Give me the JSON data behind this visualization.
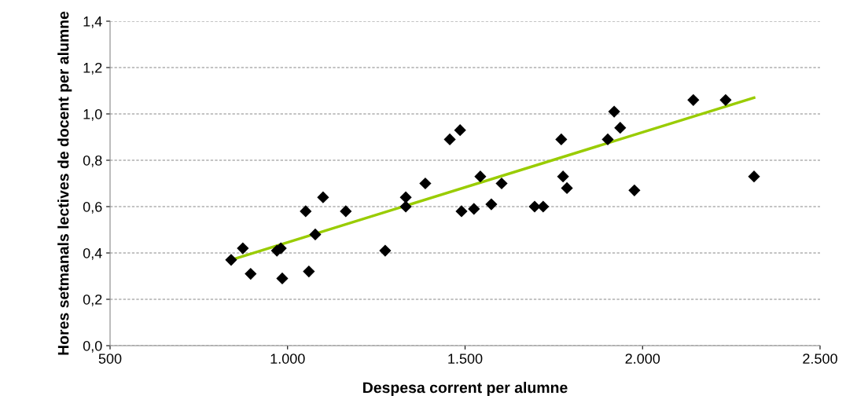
{
  "chart_data": {
    "type": "scatter",
    "xlabel": "Despesa corrent per alumne",
    "ylabel": "Hores setmanals lectives de docent per alumne",
    "grid": "y",
    "xlim": [
      500,
      2500
    ],
    "ylim": [
      0,
      1.4
    ],
    "xticks": [
      500,
      {
        "value": 1000,
        "label": "1.000"
      },
      {
        "value": 1500,
        "label": "1.500"
      },
      {
        "value": 2000,
        "label": "2.000"
      },
      {
        "value": 2500,
        "label": "2.500"
      }
    ],
    "yticks": [
      {
        "value": 0,
        "label": "0,0"
      },
      {
        "value": 0.2,
        "label": "0,2"
      },
      {
        "value": 0.4,
        "label": "0,4"
      },
      {
        "value": 0.6,
        "label": "0,6"
      },
      {
        "value": 0.8,
        "label": "0,8"
      },
      {
        "value": 1.0,
        "label": "1,0"
      },
      {
        "value": 1.2,
        "label": "1,2"
      },
      {
        "value": 1.4,
        "label": "1,4"
      }
    ],
    "series": [
      {
        "marker": "diamond",
        "color": "#000000",
        "x": [
          841,
          874,
          896,
          970,
          981,
          985,
          1051,
          1060,
          1078,
          1100,
          1164,
          1275,
          1333,
          1333,
          1388,
          1457,
          1486,
          1490,
          1525,
          1543,
          1574,
          1603,
          1696,
          1720,
          1771,
          1776,
          1787,
          1902,
          1920,
          1937,
          1977,
          2143,
          2234,
          2314
        ],
        "values": [
          0.37,
          0.42,
          0.31,
          0.41,
          0.42,
          0.29,
          0.58,
          0.32,
          0.48,
          0.64,
          0.58,
          0.41,
          0.64,
          0.6,
          0.7,
          0.89,
          0.93,
          0.58,
          0.59,
          0.73,
          0.61,
          0.7,
          0.6,
          0.6,
          0.89,
          0.73,
          0.68,
          0.89,
          1.01,
          0.94,
          0.67,
          1.06,
          1.06,
          0.73
        ]
      },
      {
        "type": "line",
        "marker": "none",
        "color": "#99cc00",
        "x": [
          841,
          2314
        ],
        "values": [
          0.37,
          1.07
        ]
      }
    ]
  }
}
